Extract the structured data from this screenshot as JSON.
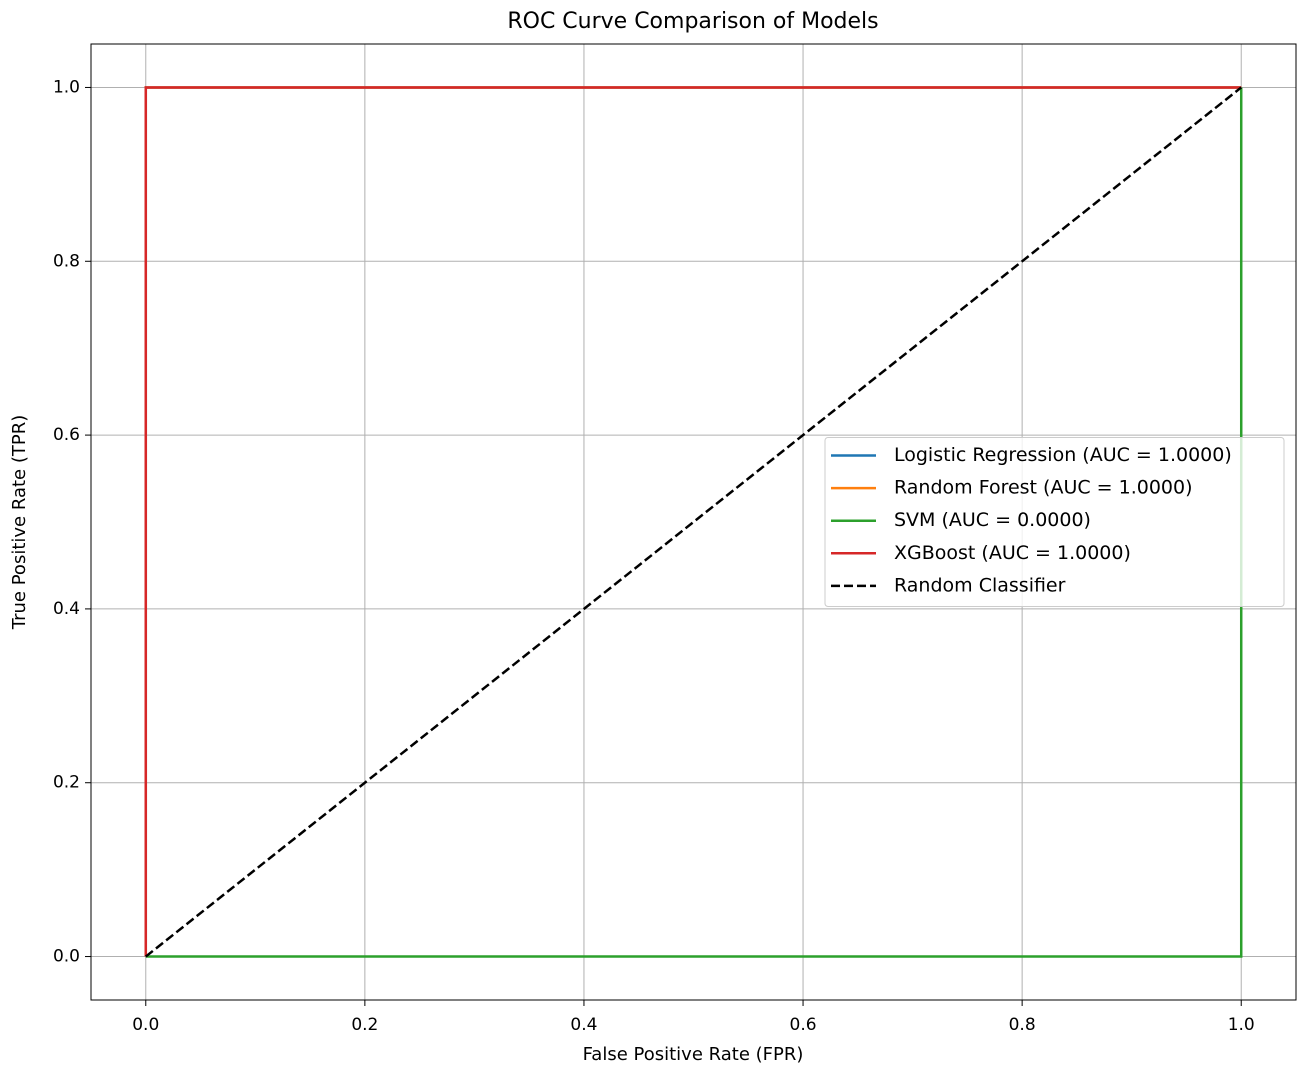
{
  "chart_data": {
    "type": "line",
    "title": "ROC Curve Comparison of Models",
    "xlabel": "False Positive Rate (FPR)",
    "ylabel": "True Positive Rate (TPR)",
    "xlim": [
      -0.05,
      1.05
    ],
    "ylim": [
      -0.05,
      1.05
    ],
    "xticks": [
      {
        "value": 0,
        "label": "0.0"
      },
      0.2,
      0.4,
      0.6,
      0.8,
      {
        "value": 1,
        "label": "1.0"
      }
    ],
    "yticks": [
      {
        "value": 0,
        "label": "0.0"
      },
      0.2,
      0.4,
      0.6,
      0.8,
      {
        "value": 1,
        "label": "1.0"
      }
    ],
    "grid": true,
    "legend": "center right",
    "series": [
      {
        "name": "Logistic Regression (AUC = 1.0000)",
        "color": "#1f77b4",
        "x": [
          0,
          0,
          1
        ],
        "values": [
          0,
          1,
          1
        ]
      },
      {
        "name": "Random Forest (AUC = 1.0000)",
        "color": "#ff7f0e",
        "x": [
          0,
          0,
          1
        ],
        "values": [
          0,
          1,
          1
        ]
      },
      {
        "name": "SVM (AUC = 0.0000)",
        "color": "#2ca02c",
        "x": [
          0,
          1,
          1
        ],
        "values": [
          0,
          0,
          1
        ]
      },
      {
        "name": "XGBoost (AUC = 1.0000)",
        "color": "#d62728",
        "x": [
          0,
          0,
          1
        ],
        "values": [
          0,
          1,
          1
        ]
      },
      {
        "name": "Random Classifier",
        "color": "#000000",
        "linestyle": "dashed",
        "x": [
          0,
          1
        ],
        "values": [
          0,
          1
        ]
      }
    ]
  }
}
